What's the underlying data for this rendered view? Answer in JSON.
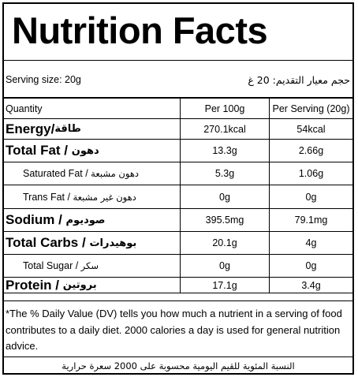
{
  "title": "Nutrition Facts",
  "serving": {
    "en": "Serving size: 20g",
    "ar": "حجم معيار التقديم: 20 غ"
  },
  "table": {
    "header": {
      "name": "Quantity",
      "per100": "Per 100g",
      "perServing": "Per Serving (20g)"
    },
    "rows": [
      {
        "en": "Energy",
        "ar": "طاقة",
        "per100": "270.1kcal",
        "perServing": "54kcal"
      },
      {
        "en": "Total Fat",
        "ar": "دهون",
        "per100": "13.3g",
        "perServing": "2.66g"
      },
      {
        "en": "Saturated Fat",
        "ar": "دهون مشبعة",
        "per100": "5.3g",
        "perServing": "1.06g"
      },
      {
        "en": "Trans Fat",
        "ar": "دهون غير مشبعة",
        "per100": "0g",
        "perServing": "0g"
      },
      {
        "en": "Sodium",
        "ar": "صوديوم",
        "per100": "395.5mg",
        "perServing": "79.1mg"
      },
      {
        "en": "Total Carbs",
        "ar": "بوهيدرات",
        "per100": "20.1g",
        "perServing": "4g"
      },
      {
        "en": "Total Sugar",
        "ar": "سكر",
        "per100": "0g",
        "perServing": "0g"
      },
      {
        "en": "Protein",
        "ar": "بروتين",
        "per100": "17.1g",
        "perServing": "3.4g"
      }
    ]
  },
  "footnote": "*The % Daily Value (DV) tells you how much a nutrient in a serving of food contributes to a daily diet. 2000 calories a day is used for general nutrition advice.",
  "footer_ar": "النسبة المئوية للقيم اليومية محسوبة على 2000 سعرة حرارية"
}
